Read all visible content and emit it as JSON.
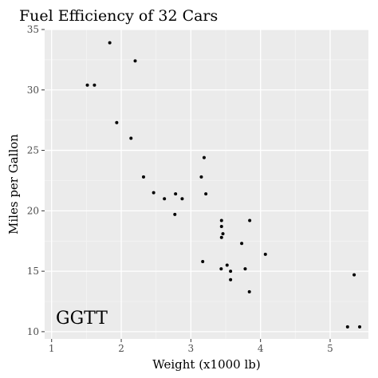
{
  "chart_data": {
    "type": "scatter",
    "title": "Fuel Efficiency of 32 Cars",
    "xlabel": "Weight (x1000 lb)",
    "ylabel": "Miles per Gallon",
    "xlim": [
      0.9,
      5.55
    ],
    "ylim": [
      9.4,
      35.0
    ],
    "xticks": [
      1,
      2,
      3,
      4,
      5
    ],
    "yticks": [
      10,
      15,
      20,
      25,
      30,
      35
    ],
    "x_tick_labels": [
      "1",
      "2",
      "3",
      "4",
      "5"
    ],
    "y_tick_labels": [
      "10",
      "15",
      "20",
      "25",
      "30",
      "35"
    ],
    "grid": true,
    "annotation": "GGTT",
    "colors": {
      "panel": "#ebebeb",
      "grid_major": "#ffffff",
      "points": "#000000"
    },
    "points": [
      {
        "x": 2.62,
        "y": 21.0
      },
      {
        "x": 2.875,
        "y": 21.0
      },
      {
        "x": 2.32,
        "y": 22.8
      },
      {
        "x": 3.215,
        "y": 21.4
      },
      {
        "x": 3.44,
        "y": 18.7
      },
      {
        "x": 3.46,
        "y": 18.1
      },
      {
        "x": 3.57,
        "y": 14.3
      },
      {
        "x": 3.19,
        "y": 24.4
      },
      {
        "x": 3.15,
        "y": 22.8
      },
      {
        "x": 3.44,
        "y": 19.2
      },
      {
        "x": 3.44,
        "y": 17.8
      },
      {
        "x": 4.07,
        "y": 16.4
      },
      {
        "x": 3.73,
        "y": 17.3
      },
      {
        "x": 3.78,
        "y": 15.2
      },
      {
        "x": 5.25,
        "y": 10.4
      },
      {
        "x": 5.424,
        "y": 10.4
      },
      {
        "x": 5.345,
        "y": 14.7
      },
      {
        "x": 2.2,
        "y": 32.4
      },
      {
        "x": 1.615,
        "y": 30.4
      },
      {
        "x": 1.835,
        "y": 33.9
      },
      {
        "x": 2.465,
        "y": 21.5
      },
      {
        "x": 3.52,
        "y": 15.5
      },
      {
        "x": 3.435,
        "y": 15.2
      },
      {
        "x": 3.84,
        "y": 13.3
      },
      {
        "x": 3.845,
        "y": 19.2
      },
      {
        "x": 1.935,
        "y": 27.3
      },
      {
        "x": 2.14,
        "y": 26.0
      },
      {
        "x": 1.513,
        "y": 30.4
      },
      {
        "x": 3.17,
        "y": 15.8
      },
      {
        "x": 2.77,
        "y": 19.7
      },
      {
        "x": 3.57,
        "y": 15.0
      },
      {
        "x": 2.78,
        "y": 21.4
      }
    ]
  }
}
